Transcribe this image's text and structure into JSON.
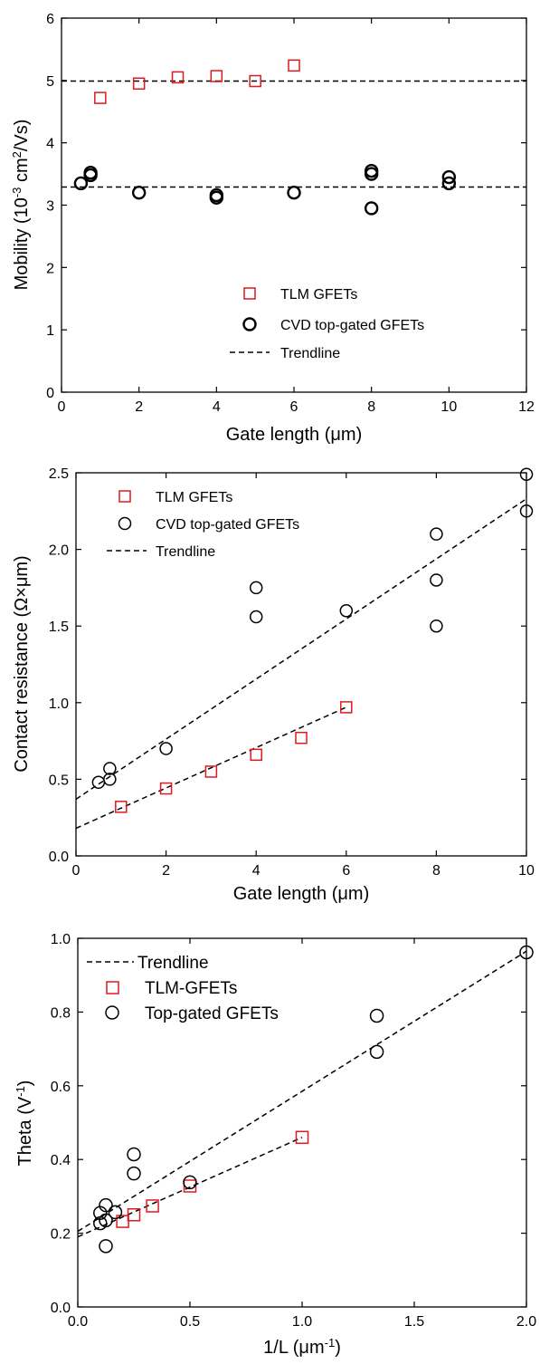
{
  "colors": {
    "tlm": "#e0191f",
    "cvd": "#000000",
    "trend": "#000000"
  },
  "chart_data": [
    {
      "type": "scatter",
      "xlabel_main": "Gate length (",
      "xlabel_mu": "μ",
      "xlabel_end": "m)",
      "ylabel_pre": "Mobility (10",
      "ylabel_sup1": "-3",
      "ylabel_mid": " cm",
      "ylabel_sup2": "2",
      "ylabel_post": "/Vs)",
      "xlim": [
        0,
        12
      ],
      "ylim": [
        0,
        6
      ],
      "xticks": [
        "0",
        "2",
        "4",
        "6",
        "8",
        "10",
        "12"
      ],
      "yticks": [
        "0",
        "1",
        "2",
        "3",
        "4",
        "5",
        "6"
      ],
      "grid": false,
      "legend_position": "bottom-center",
      "series": [
        {
          "name": "TLM GFETs",
          "marker": "square",
          "color": "#e0191f",
          "x": [
            1,
            2,
            3,
            4,
            5,
            6
          ],
          "y": [
            4.72,
            4.95,
            5.05,
            5.07,
            4.99,
            5.24
          ]
        },
        {
          "name": "CVD top-gated GFETs",
          "marker": "circle",
          "color": "#000000",
          "x": [
            0.5,
            0.75,
            0.75,
            2,
            4,
            4,
            6,
            8,
            8,
            8,
            10,
            10
          ],
          "y": [
            3.35,
            3.48,
            3.52,
            3.2,
            3.12,
            3.16,
            3.2,
            2.95,
            3.5,
            3.55,
            3.35,
            3.45
          ]
        }
      ],
      "trendlines": [
        {
          "name": "Trendline",
          "x": [
            0,
            12
          ],
          "y": [
            4.99,
            4.99
          ]
        },
        {
          "name": "",
          "x": [
            0,
            12
          ],
          "y": [
            3.29,
            3.29
          ]
        }
      ]
    },
    {
      "type": "scatter",
      "xlabel_main": "Gate length (",
      "xlabel_mu": "μ",
      "xlabel_end": "m)",
      "ylabel": "Contact resistance (Ω×μm)",
      "xlim": [
        0,
        10
      ],
      "ylim": [
        0,
        2.5
      ],
      "xticks": [
        "0",
        "2",
        "4",
        "6",
        "8",
        "10"
      ],
      "yticks": [
        "0.0",
        "0.5",
        "1.0",
        "1.5",
        "2.0",
        "2.5"
      ],
      "grid": false,
      "legend_position": "top-left",
      "series": [
        {
          "name": "TLM GFETs",
          "marker": "square",
          "color": "#e0191f",
          "x": [
            1,
            2,
            3,
            4,
            5,
            6
          ],
          "y": [
            0.32,
            0.44,
            0.55,
            0.66,
            0.77,
            0.97
          ]
        },
        {
          "name": "CVD top-gated GFETs",
          "marker": "circle",
          "color": "#000000",
          "x": [
            0.5,
            0.75,
            0.75,
            2,
            4,
            4,
            6,
            8,
            8,
            8,
            10,
            10
          ],
          "y": [
            0.48,
            0.5,
            0.57,
            0.7,
            1.56,
            1.75,
            1.6,
            1.5,
            1.8,
            2.1,
            2.25,
            2.49
          ]
        }
      ],
      "trendlines": [
        {
          "name": "Trendline",
          "x": [
            0,
            10
          ],
          "y": [
            0.37,
            2.33
          ]
        },
        {
          "name": "",
          "x": [
            0,
            6
          ],
          "y": [
            0.18,
            0.97
          ]
        }
      ]
    },
    {
      "type": "scatter",
      "xlabel_pre": "1/L (",
      "xlabel_mu": "μ",
      "xlabel_mid": "m",
      "xlabel_sup": "-1",
      "xlabel_post": ")",
      "ylabel_pre": "Theta (V",
      "ylabel_sup": "-1",
      "ylabel_post": ")",
      "xlim": [
        0,
        2
      ],
      "ylim": [
        0,
        1
      ],
      "xticks": [
        "0.0",
        "0.5",
        "1.0",
        "1.5",
        "2.0"
      ],
      "yticks": [
        "0.0",
        "0.2",
        "0.4",
        "0.6",
        "0.8",
        "1.0"
      ],
      "grid": false,
      "legend_position": "top-left",
      "series": [
        {
          "name": "TLM-GFETs",
          "marker": "square",
          "color": "#e0191f",
          "x": [
            0.2,
            0.25,
            0.333,
            0.5,
            1.0
          ],
          "y": [
            0.232,
            0.25,
            0.274,
            0.328,
            0.46
          ]
        },
        {
          "name": "Top-gated GFETs",
          "marker": "circle",
          "color": "#000000",
          "x": [
            0.1,
            0.1,
            0.125,
            0.125,
            0.125,
            0.167,
            0.25,
            0.25,
            0.5,
            1.333,
            1.333,
            2.0
          ],
          "y": [
            0.227,
            0.255,
            0.235,
            0.276,
            0.165,
            0.257,
            0.362,
            0.414,
            0.338,
            0.692,
            0.79,
            0.962
          ]
        }
      ],
      "trendlines": [
        {
          "name": "Trendline",
          "x": [
            0,
            2
          ],
          "y": [
            0.205,
            0.965
          ]
        },
        {
          "name": "",
          "x": [
            0,
            1
          ],
          "y": [
            0.19,
            0.46
          ]
        }
      ]
    }
  ]
}
